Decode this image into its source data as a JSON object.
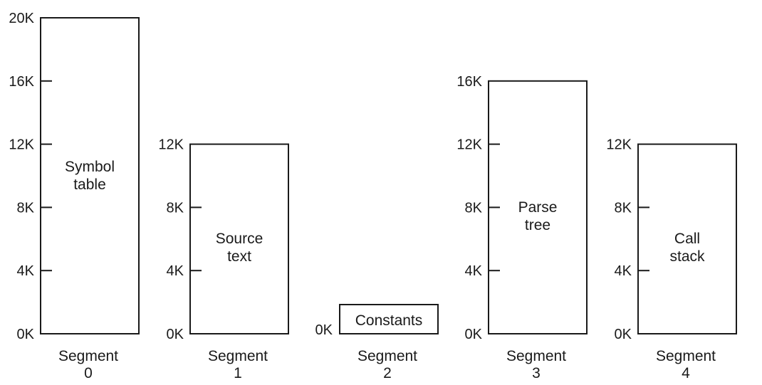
{
  "segments": [
    {
      "caption": [
        "Segment",
        "0"
      ],
      "contents": [
        "Symbol",
        "table"
      ],
      "size_k": 20,
      "tick_labels": [
        "0K",
        "4K",
        "8K",
        "12K",
        "16K",
        "20K"
      ]
    },
    {
      "caption": [
        "Segment",
        "1"
      ],
      "contents": [
        "Source",
        "text"
      ],
      "size_k": 12,
      "tick_labels": [
        "0K",
        "4K",
        "8K",
        "12K"
      ]
    },
    {
      "caption": [
        "Segment",
        "2"
      ],
      "contents": [
        "Constants"
      ],
      "size_k": 0,
      "tick_labels": [
        "0K"
      ]
    },
    {
      "caption": [
        "Segment",
        "3"
      ],
      "contents": [
        "Parse",
        "tree"
      ],
      "size_k": 16,
      "tick_labels": [
        "0K",
        "4K",
        "8K",
        "12K",
        "16K"
      ]
    },
    {
      "caption": [
        "Segment",
        "4"
      ],
      "contents": [
        "Call",
        "stack"
      ],
      "size_k": 12,
      "tick_labels": [
        "0K",
        "4K",
        "8K",
        "12K"
      ]
    }
  ]
}
